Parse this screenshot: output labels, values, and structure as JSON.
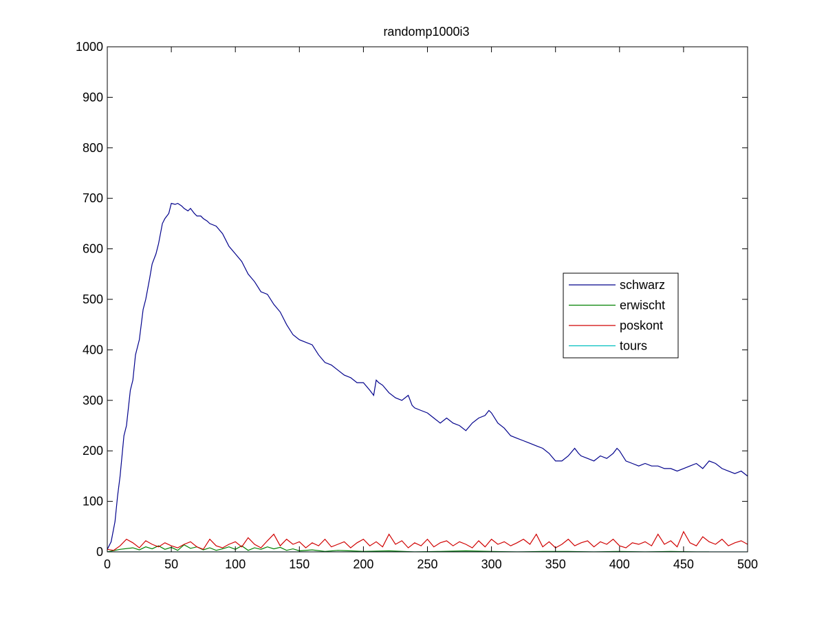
{
  "chart_data": {
    "type": "line",
    "title": "randomp1000i3",
    "xlabel": "",
    "ylabel": "",
    "xlim": [
      0,
      500
    ],
    "ylim": [
      0,
      1000
    ],
    "x_ticks": [
      0,
      50,
      100,
      150,
      200,
      250,
      300,
      350,
      400,
      450,
      500
    ],
    "y_ticks": [
      0,
      100,
      200,
      300,
      400,
      500,
      600,
      700,
      800,
      900,
      1000
    ],
    "grid": false,
    "legend_position": "right",
    "series": [
      {
        "name": "schwarz",
        "color": "#00008b",
        "x": [
          0,
          3,
          6,
          8,
          10,
          13,
          15,
          18,
          20,
          22,
          25,
          28,
          30,
          33,
          35,
          38,
          40,
          43,
          45,
          48,
          50,
          53,
          55,
          58,
          60,
          63,
          65,
          68,
          70,
          73,
          75,
          78,
          80,
          85,
          90,
          95,
          100,
          105,
          110,
          115,
          120,
          125,
          130,
          135,
          140,
          145,
          150,
          155,
          160,
          165,
          170,
          175,
          180,
          185,
          190,
          195,
          200,
          205,
          208,
          210,
          212,
          215,
          220,
          225,
          230,
          235,
          238,
          240,
          245,
          250,
          255,
          260,
          265,
          270,
          275,
          280,
          285,
          290,
          295,
          298,
          300,
          305,
          310,
          315,
          320,
          325,
          330,
          335,
          340,
          345,
          350,
          355,
          360,
          365,
          368,
          370,
          375,
          380,
          385,
          390,
          395,
          398,
          400,
          405,
          410,
          415,
          420,
          425,
          430,
          435,
          440,
          445,
          450,
          455,
          460,
          465,
          470,
          475,
          480,
          485,
          490,
          495,
          500
        ],
        "values": [
          5,
          20,
          60,
          110,
          150,
          230,
          250,
          320,
          340,
          390,
          420,
          480,
          500,
          540,
          570,
          590,
          610,
          650,
          660,
          670,
          690,
          688,
          690,
          685,
          680,
          675,
          680,
          670,
          665,
          665,
          660,
          655,
          650,
          645,
          630,
          605,
          590,
          575,
          550,
          535,
          515,
          510,
          490,
          475,
          450,
          430,
          420,
          415,
          410,
          390,
          375,
          370,
          360,
          350,
          345,
          335,
          335,
          320,
          310,
          340,
          335,
          330,
          315,
          305,
          300,
          310,
          290,
          285,
          280,
          275,
          265,
          255,
          265,
          255,
          250,
          240,
          255,
          265,
          270,
          280,
          275,
          255,
          245,
          230,
          225,
          220,
          215,
          210,
          205,
          195,
          180,
          180,
          190,
          205,
          195,
          190,
          185,
          180,
          190,
          185,
          195,
          205,
          200,
          180,
          175,
          170,
          175,
          170,
          170,
          165,
          165,
          160,
          165,
          170,
          175,
          165,
          180,
          175,
          165,
          160,
          155,
          160,
          150
        ]
      },
      {
        "name": "erwischt",
        "color": "#008000",
        "x": [
          0,
          10,
          20,
          25,
          30,
          35,
          40,
          45,
          50,
          55,
          60,
          65,
          70,
          75,
          80,
          85,
          90,
          95,
          100,
          105,
          110,
          115,
          120,
          125,
          130,
          135,
          140,
          145,
          150,
          160,
          170,
          180,
          190,
          200,
          220,
          240,
          260,
          280,
          300,
          320,
          340,
          360,
          380,
          400,
          420,
          440,
          460,
          470
        ],
        "values": [
          0,
          5,
          8,
          4,
          10,
          6,
          12,
          5,
          9,
          3,
          14,
          7,
          10,
          4,
          8,
          3,
          6,
          10,
          5,
          12,
          3,
          8,
          5,
          10,
          6,
          9,
          3,
          6,
          2,
          4,
          1,
          3,
          2,
          1,
          2,
          0,
          1,
          2,
          1,
          0,
          1,
          1,
          0,
          1,
          0,
          1,
          0,
          0
        ]
      },
      {
        "name": "poskont",
        "color": "#d00000",
        "x": [
          0,
          5,
          10,
          15,
          20,
          25,
          30,
          35,
          40,
          45,
          50,
          55,
          60,
          65,
          70,
          75,
          80,
          85,
          90,
          95,
          100,
          105,
          110,
          115,
          120,
          125,
          130,
          135,
          140,
          145,
          150,
          155,
          160,
          165,
          170,
          175,
          180,
          185,
          190,
          195,
          200,
          205,
          210,
          215,
          220,
          225,
          230,
          235,
          240,
          245,
          250,
          255,
          260,
          265,
          270,
          275,
          280,
          285,
          290,
          295,
          300,
          305,
          310,
          315,
          320,
          325,
          330,
          335,
          340,
          345,
          350,
          355,
          360,
          365,
          370,
          375,
          380,
          385,
          390,
          395,
          400,
          405,
          410,
          415,
          420,
          425,
          430,
          435,
          440,
          445,
          450,
          455,
          460,
          465,
          470,
          475,
          480,
          485,
          490,
          495,
          500
        ],
        "values": [
          5,
          3,
          12,
          25,
          18,
          8,
          22,
          15,
          10,
          18,
          12,
          8,
          15,
          20,
          10,
          5,
          25,
          12,
          8,
          15,
          20,
          10,
          28,
          15,
          8,
          22,
          35,
          12,
          25,
          15,
          20,
          8,
          18,
          12,
          25,
          10,
          15,
          20,
          8,
          18,
          25,
          12,
          20,
          10,
          35,
          15,
          22,
          8,
          18,
          12,
          25,
          10,
          18,
          22,
          12,
          20,
          15,
          8,
          22,
          10,
          25,
          15,
          20,
          12,
          18,
          25,
          15,
          35,
          10,
          20,
          8,
          15,
          25,
          12,
          18,
          22,
          10,
          20,
          15,
          25,
          12,
          8,
          18,
          15,
          20,
          12,
          35,
          15,
          22,
          10,
          40,
          18,
          12,
          30,
          20,
          15,
          25,
          12,
          18,
          22,
          15
        ]
      },
      {
        "name": "tours",
        "color": "#00bfbf",
        "x": [
          0,
          500
        ],
        "values": [
          0,
          0
        ]
      }
    ]
  }
}
